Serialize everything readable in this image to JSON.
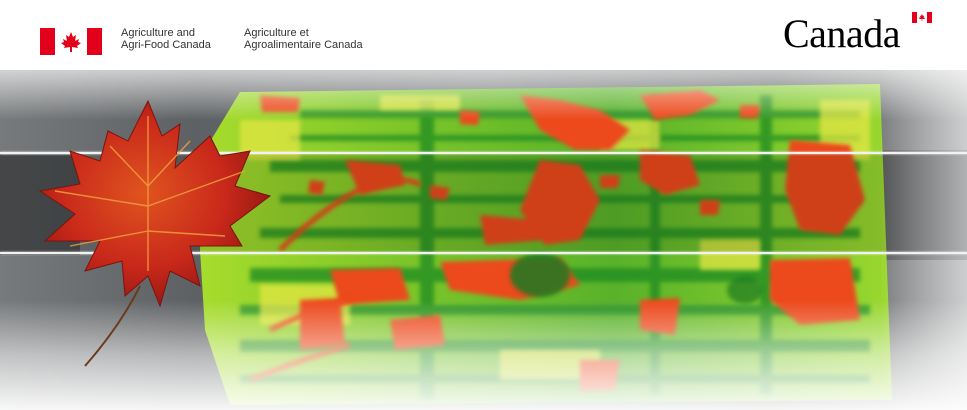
{
  "header": {
    "department_en": "Agriculture and\nAgri-Food Canada",
    "department_fr": "Agriculture et\nAgroalimentaire Canada",
    "wordmark": "Canada",
    "flag_icon": "canada-flag-icon",
    "wordmark_flag_icon": "canada-wordmark-flag-icon"
  },
  "hero": {
    "imagery": "crop-field-ndvi-map",
    "leaf_icon": "maple-leaf-icon"
  },
  "colors": {
    "flag_red": "#e3001b",
    "field_green_light": "#b8e62a",
    "field_green_dark": "#1f8a23",
    "field_red": "#ec4a1e",
    "field_yellow": "#e9e844",
    "leaf_red": "#c8281a",
    "divider": "#f2f2f2",
    "background": "#ffffff"
  }
}
